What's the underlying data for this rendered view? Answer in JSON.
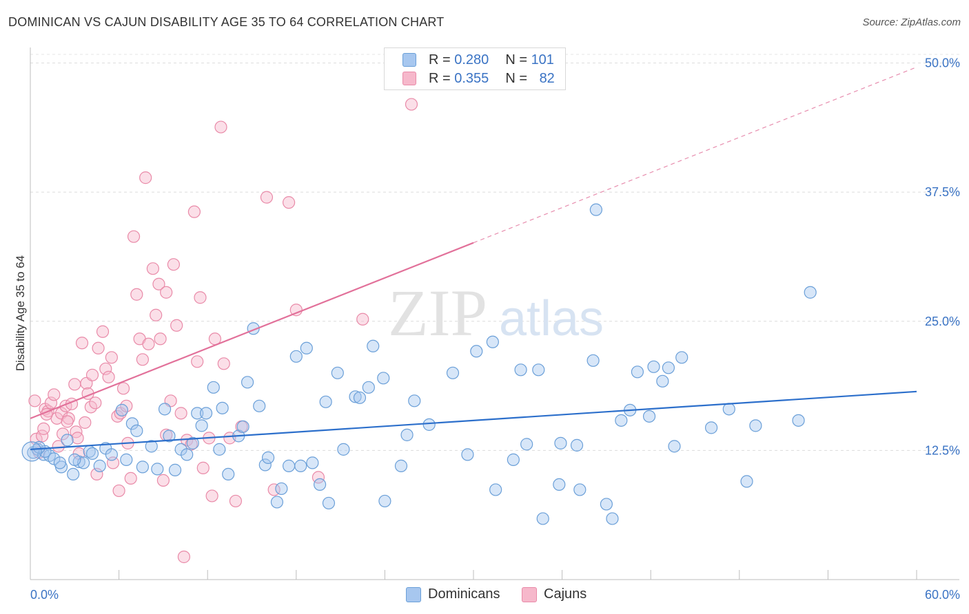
{
  "title": "DOMINICAN VS CAJUN DISABILITY AGE 35 TO 64 CORRELATION CHART",
  "source": "Source: ZipAtlas.com",
  "watermark": {
    "zip": "ZIP",
    "atlas": "atlas"
  },
  "legend_top": {
    "rows": [
      {
        "r_label": "R = ",
        "r_value": "0.280",
        "n_label": "N = ",
        "n_value": "101",
        "color": "#a7c7ef"
      },
      {
        "r_label": "R = ",
        "r_value": "0.355",
        "n_label": "N = ",
        "n_value": "82",
        "color": "#f6b8cb"
      }
    ]
  },
  "legend_bottom": [
    {
      "label": "Dominicans",
      "color": "#a7c7ef"
    },
    {
      "label": "Cajuns",
      "color": "#f6b8cb"
    }
  ],
  "colors": {
    "blue_stroke": "#6a9fd8",
    "blue_fill": "#a7c7ef",
    "blue_line": "#2c6fcb",
    "pink_stroke": "#e98aa8",
    "pink_fill": "#f6b8cb",
    "pink_line": "#e2719a",
    "tick_label": "#3a73c4"
  },
  "chart_data": {
    "type": "scatter",
    "title": "DOMINICAN VS CAJUN DISABILITY AGE 35 TO 64 CORRELATION CHART",
    "xlabel": "",
    "ylabel": "Disability Age 35 to 64",
    "xlim": [
      0,
      60
    ],
    "ylim": [
      0,
      51.5
    ],
    "x_tick_labels": [
      "0.0%",
      "60.0%"
    ],
    "y_ticks": [
      12.5,
      25.0,
      37.5,
      50.0
    ],
    "y_tick_labels": [
      "12.5%",
      "25.0%",
      "37.5%",
      "50.0%"
    ],
    "grid": true,
    "series": [
      {
        "name": "Dominicans",
        "r": 0.28,
        "n": 101,
        "trend": {
          "x": [
            0,
            60
          ],
          "y": [
            12.6,
            18.2
          ],
          "dashed_from": null
        },
        "points": [
          [
            0.2,
            12.3
          ],
          [
            0.5,
            12.6
          ],
          [
            0.9,
            12.1
          ],
          [
            1.3,
            12.0
          ],
          [
            1.6,
            11.7
          ],
          [
            2.1,
            10.9
          ],
          [
            2.5,
            13.5
          ],
          [
            2.9,
            10.2
          ],
          [
            3.3,
            11.4
          ],
          [
            3.6,
            11.3
          ],
          [
            4.0,
            12.4
          ],
          [
            4.2,
            12.2
          ],
          [
            4.7,
            11.0
          ],
          [
            5.1,
            12.7
          ],
          [
            5.5,
            12.1
          ],
          [
            6.2,
            16.4
          ],
          [
            6.5,
            11.6
          ],
          [
            6.9,
            15.1
          ],
          [
            7.2,
            14.4
          ],
          [
            7.6,
            10.9
          ],
          [
            8.2,
            12.9
          ],
          [
            8.6,
            10.7
          ],
          [
            9.1,
            16.5
          ],
          [
            9.4,
            13.9
          ],
          [
            9.8,
            10.6
          ],
          [
            10.2,
            12.6
          ],
          [
            10.6,
            12.1
          ],
          [
            11.0,
            13.2
          ],
          [
            11.3,
            16.1
          ],
          [
            11.6,
            14.9
          ],
          [
            11.9,
            16.1
          ],
          [
            12.4,
            18.6
          ],
          [
            12.8,
            12.6
          ],
          [
            13.0,
            16.6
          ],
          [
            13.4,
            10.2
          ],
          [
            14.1,
            13.9
          ],
          [
            14.4,
            14.8
          ],
          [
            14.7,
            19.1
          ],
          [
            15.1,
            24.3
          ],
          [
            15.5,
            16.8
          ],
          [
            15.9,
            11.1
          ],
          [
            16.1,
            11.8
          ],
          [
            16.7,
            7.5
          ],
          [
            17.0,
            8.8
          ],
          [
            17.5,
            11.0
          ],
          [
            18.0,
            21.6
          ],
          [
            18.3,
            11.0
          ],
          [
            18.7,
            22.4
          ],
          [
            19.1,
            11.3
          ],
          [
            19.6,
            9.2
          ],
          [
            20.0,
            17.2
          ],
          [
            20.2,
            7.4
          ],
          [
            20.8,
            20.0
          ],
          [
            21.2,
            12.6
          ],
          [
            22.0,
            17.7
          ],
          [
            22.3,
            17.6
          ],
          [
            22.9,
            18.6
          ],
          [
            23.2,
            22.6
          ],
          [
            23.9,
            19.5
          ],
          [
            24.0,
            7.6
          ],
          [
            25.1,
            11.0
          ],
          [
            25.5,
            14.0
          ],
          [
            26.0,
            17.3
          ],
          [
            27.0,
            15.0
          ],
          [
            28.6,
            20.0
          ],
          [
            29.6,
            12.1
          ],
          [
            30.2,
            22.1
          ],
          [
            31.3,
            23.0
          ],
          [
            31.5,
            8.7
          ],
          [
            32.7,
            11.6
          ],
          [
            33.2,
            20.3
          ],
          [
            33.6,
            13.1
          ],
          [
            34.4,
            20.3
          ],
          [
            34.7,
            5.9
          ],
          [
            35.8,
            9.2
          ],
          [
            35.9,
            13.2
          ],
          [
            37.0,
            13.0
          ],
          [
            37.2,
            8.7
          ],
          [
            38.1,
            21.2
          ],
          [
            38.3,
            35.8
          ],
          [
            39.0,
            7.3
          ],
          [
            39.4,
            5.9
          ],
          [
            40.0,
            15.4
          ],
          [
            40.6,
            16.4
          ],
          [
            41.1,
            20.1
          ],
          [
            41.9,
            15.8
          ],
          [
            42.2,
            20.6
          ],
          [
            42.8,
            19.2
          ],
          [
            43.2,
            20.5
          ],
          [
            43.6,
            12.9
          ],
          [
            44.1,
            21.5
          ],
          [
            46.1,
            14.7
          ],
          [
            47.3,
            16.5
          ],
          [
            48.5,
            9.5
          ],
          [
            49.1,
            14.9
          ],
          [
            52.0,
            15.4
          ],
          [
            52.8,
            27.8
          ],
          [
            1.0,
            12.4
          ],
          [
            2.0,
            11.3
          ],
          [
            3.0,
            11.6
          ],
          [
            0.6,
            12.8
          ]
        ]
      },
      {
        "name": "Cajuns",
        "r": 0.355,
        "n": 82,
        "trend": {
          "x": [
            0,
            60
          ],
          "y": [
            15.6,
            49.6
          ],
          "dashed_from": 30
        },
        "points": [
          [
            0.3,
            17.3
          ],
          [
            0.4,
            13.6
          ],
          [
            0.6,
            12.3
          ],
          [
            0.8,
            13.9
          ],
          [
            1.0,
            16.5
          ],
          [
            1.2,
            16.3
          ],
          [
            1.4,
            17.1
          ],
          [
            1.6,
            17.9
          ],
          [
            1.8,
            15.6
          ],
          [
            1.9,
            12.9
          ],
          [
            2.1,
            16.1
          ],
          [
            2.2,
            14.1
          ],
          [
            2.4,
            16.8
          ],
          [
            2.6,
            15.6
          ],
          [
            2.8,
            17.0
          ],
          [
            3.0,
            18.9
          ],
          [
            3.1,
            14.3
          ],
          [
            3.3,
            12.2
          ],
          [
            3.5,
            22.9
          ],
          [
            3.7,
            15.2
          ],
          [
            3.8,
            19.0
          ],
          [
            3.9,
            18.0
          ],
          [
            4.1,
            16.7
          ],
          [
            4.2,
            19.8
          ],
          [
            4.4,
            17.1
          ],
          [
            4.6,
            22.4
          ],
          [
            4.9,
            24.0
          ],
          [
            5.1,
            20.4
          ],
          [
            5.3,
            19.6
          ],
          [
            5.5,
            21.5
          ],
          [
            5.9,
            15.8
          ],
          [
            6.1,
            16.1
          ],
          [
            6.3,
            18.5
          ],
          [
            6.5,
            16.8
          ],
          [
            6.6,
            13.2
          ],
          [
            6.8,
            9.8
          ],
          [
            7.0,
            33.2
          ],
          [
            7.2,
            27.6
          ],
          [
            7.4,
            23.3
          ],
          [
            7.6,
            21.3
          ],
          [
            7.8,
            38.9
          ],
          [
            8.0,
            22.8
          ],
          [
            8.3,
            30.1
          ],
          [
            8.5,
            25.6
          ],
          [
            8.7,
            28.6
          ],
          [
            8.8,
            23.3
          ],
          [
            9.0,
            9.6
          ],
          [
            9.2,
            27.8
          ],
          [
            9.5,
            17.3
          ],
          [
            9.7,
            30.5
          ],
          [
            9.9,
            24.6
          ],
          [
            10.2,
            16.1
          ],
          [
            10.4,
            2.2
          ],
          [
            10.6,
            13.5
          ],
          [
            10.9,
            13.1
          ],
          [
            11.1,
            35.6
          ],
          [
            11.3,
            21.1
          ],
          [
            11.5,
            27.3
          ],
          [
            11.7,
            10.8
          ],
          [
            12.1,
            13.7
          ],
          [
            12.3,
            8.1
          ],
          [
            12.5,
            23.3
          ],
          [
            12.9,
            43.8
          ],
          [
            13.1,
            20.9
          ],
          [
            13.5,
            13.7
          ],
          [
            13.9,
            7.6
          ],
          [
            14.3,
            14.8
          ],
          [
            16.0,
            37.0
          ],
          [
            16.5,
            8.7
          ],
          [
            17.5,
            36.5
          ],
          [
            18.0,
            26.1
          ],
          [
            19.5,
            9.9
          ],
          [
            22.5,
            25.2
          ],
          [
            25.8,
            46.0
          ],
          [
            9.2,
            14.0
          ],
          [
            5.6,
            11.3
          ],
          [
            3.2,
            13.7
          ],
          [
            2.5,
            15.3
          ],
          [
            1.1,
            16.0
          ],
          [
            0.9,
            14.6
          ],
          [
            4.5,
            10.2
          ],
          [
            6.0,
            8.6
          ]
        ]
      }
    ]
  }
}
